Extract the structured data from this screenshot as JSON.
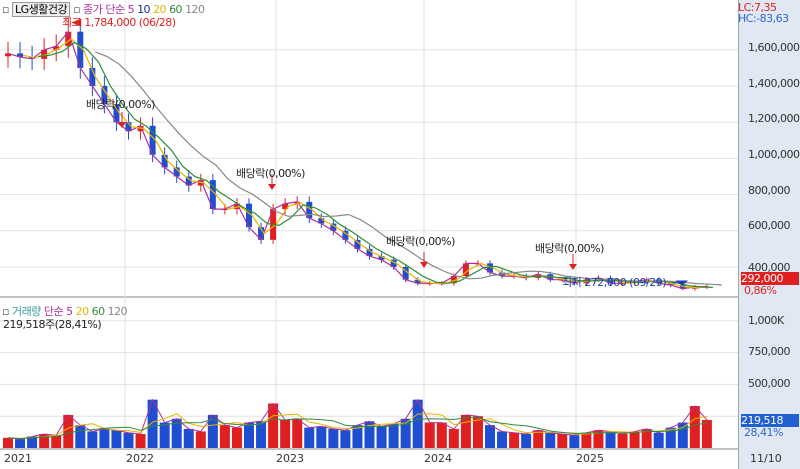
{
  "header": {
    "symbol": "LG생활건강",
    "legend_label": "종가 단순",
    "ma_periods": [
      "5",
      "10",
      "20",
      "60",
      "120"
    ],
    "ma_colors": [
      "#b0309a",
      "#1a2f8c",
      "#e8b400",
      "#2e8b3c",
      "#888888"
    ],
    "lc": "LC:7,35",
    "hc": "HC:-83,63"
  },
  "volume_header": {
    "label": "거래량",
    "legend_label": "단순",
    "ma_periods": [
      "5",
      "20",
      "60",
      "120"
    ],
    "summary": "219,518주(28,41%)"
  },
  "current": {
    "price": "292,000",
    "change": "0,86%",
    "volume": "219,518",
    "volume_pct": "28,41%"
  },
  "annotations": {
    "high": "최고 1,784,000 (06/28)",
    "low": "최저 272,000 (09/29)",
    "dividends": [
      "배당락(0,00%)",
      "배당락(0,00%)",
      "배당락(0,00%)",
      "배당락(0,00%)"
    ]
  },
  "chart_data": [
    {
      "type": "candlestick",
      "title": "LG생활건강",
      "x_ticks": [
        "2021",
        "2022",
        "2023",
        "2024",
        "2025",
        "11/10"
      ],
      "y_ticks": [
        "1,600,000",
        "1,400,000",
        "1,200,000",
        "1,000,000",
        "800,000",
        "600,000",
        "400,000"
      ],
      "ylim": [
        260000,
        1800000
      ],
      "start": "2021-01",
      "monthly_close": [
        1580000,
        1560000,
        1550000,
        1600000,
        1620000,
        1700000,
        1500000,
        1400000,
        1300000,
        1200000,
        1150000,
        1180000,
        1020000,
        950000,
        900000,
        850000,
        880000,
        720000,
        720000,
        750000,
        620000,
        550000,
        720000,
        750000,
        760000,
        670000,
        640000,
        600000,
        550000,
        500000,
        460000,
        440000,
        400000,
        330000,
        310000,
        310000,
        310000,
        350000,
        420000,
        420000,
        370000,
        350000,
        350000,
        340000,
        360000,
        330000,
        330000,
        310000,
        330000,
        340000,
        310000,
        310000,
        320000,
        330000,
        310000,
        300000,
        280000,
        290000,
        292000
      ],
      "high": 1784000,
      "low": 272000,
      "grid": true
    },
    {
      "type": "bar",
      "title": "거래량",
      "y_ticks": [
        "1,000K",
        "750,000",
        "500,000"
      ],
      "ylim": [
        0,
        1100000
      ],
      "monthly_volume": [
        80000,
        70000,
        90000,
        110000,
        100000,
        260000,
        180000,
        130000,
        150000,
        140000,
        120000,
        110000,
        380000,
        200000,
        230000,
        150000,
        130000,
        260000,
        180000,
        160000,
        200000,
        210000,
        350000,
        220000,
        230000,
        160000,
        170000,
        150000,
        140000,
        180000,
        210000,
        170000,
        190000,
        230000,
        380000,
        200000,
        200000,
        150000,
        260000,
        250000,
        180000,
        130000,
        120000,
        110000,
        140000,
        120000,
        110000,
        100000,
        120000,
        140000,
        130000,
        110000,
        130000,
        150000,
        120000,
        160000,
        200000,
        330000,
        220000
      ],
      "grid": true
    }
  ]
}
